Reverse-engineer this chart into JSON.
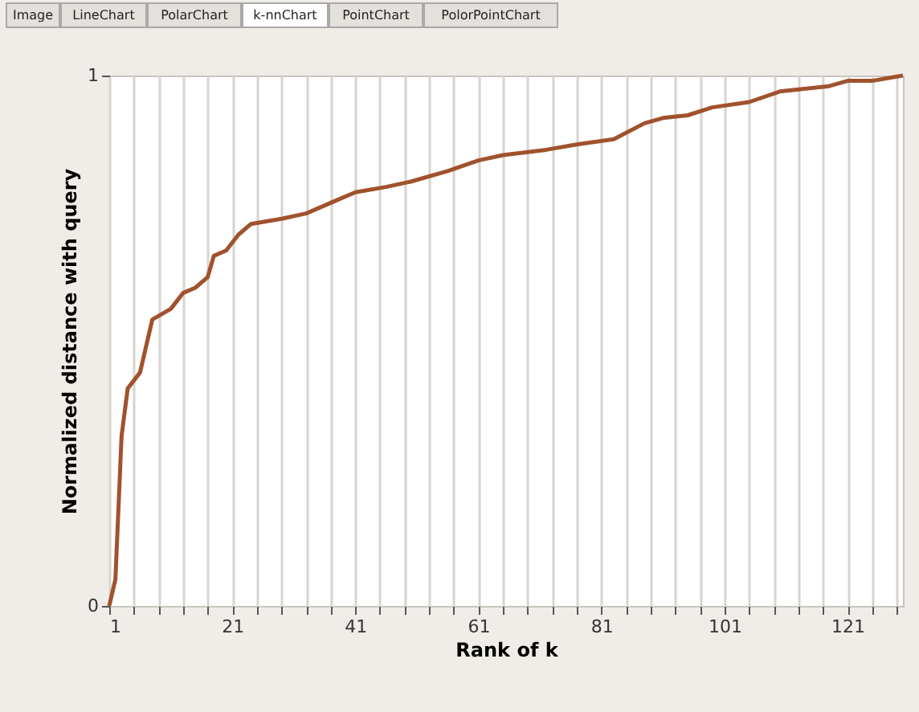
{
  "chart_data": {
    "type": "line",
    "xlabel": "Rank of k",
    "ylabel": "Normalized distance with query",
    "annotations": [
      "Image",
      "LineChart",
      "PolarChart",
      "k-nnChart",
      "PointChart",
      "PolorPointChart"
    ],
    "series": [
      {
        "color": "#a0522d",
        "x": [
          1,
          2,
          3,
          4,
          6,
          8,
          11,
          13,
          15,
          17,
          18,
          20,
          22,
          24,
          29,
          33,
          37,
          41,
          46,
          50,
          56,
          61,
          65,
          72,
          77,
          83,
          88,
          91,
          95,
          99,
          105,
          110,
          114,
          118,
          121,
          125,
          130
        ],
        "values": [
          0,
          0.05,
          0.32,
          0.41,
          0.44,
          0.54,
          0.56,
          0.59,
          0.6,
          0.62,
          0.66,
          0.67,
          0.7,
          0.72,
          0.73,
          0.74,
          0.76,
          0.78,
          0.79,
          0.8,
          0.82,
          0.84,
          0.85,
          0.86,
          0.87,
          0.88,
          0.91,
          0.92,
          0.925,
          0.94,
          0.95,
          0.97,
          0.975,
          0.98,
          0.99,
          0.99,
          1.0
        ]
      }
    ],
    "xlim": [
      1,
      130
    ],
    "ylim": [
      0,
      1
    ],
    "yticks": [
      0,
      1
    ],
    "xticks": [
      1,
      {
        "value": 5,
        "label": null
      },
      {
        "value": 9,
        "label": null
      },
      {
        "value": 13,
        "label": null
      },
      {
        "value": 17,
        "label": null
      },
      21,
      {
        "value": 25,
        "label": null
      },
      {
        "value": 29,
        "label": null
      },
      {
        "value": 33,
        "label": null
      },
      {
        "value": 37,
        "label": null
      },
      41,
      {
        "value": 45,
        "label": null
      },
      {
        "value": 49,
        "label": null
      },
      {
        "value": 53,
        "label": null
      },
      {
        "value": 57,
        "label": null
      },
      61,
      {
        "value": 65,
        "label": null
      },
      {
        "value": 69,
        "label": null
      },
      {
        "value": 73,
        "label": null
      },
      {
        "value": 77,
        "label": null
      },
      81,
      {
        "value": 85,
        "label": null
      },
      {
        "value": 89,
        "label": null
      },
      {
        "value": 93,
        "label": null
      },
      {
        "value": 97,
        "label": null
      },
      101,
      {
        "value": 105,
        "label": null
      },
      {
        "value": 109,
        "label": null
      },
      {
        "value": 113,
        "label": null
      },
      {
        "value": 117,
        "label": null
      },
      121,
      {
        "value": 125,
        "label": null
      },
      {
        "value": 129,
        "label": null
      }
    ],
    "grid": "x",
    "line_style": "solid",
    "marker": "none"
  }
}
